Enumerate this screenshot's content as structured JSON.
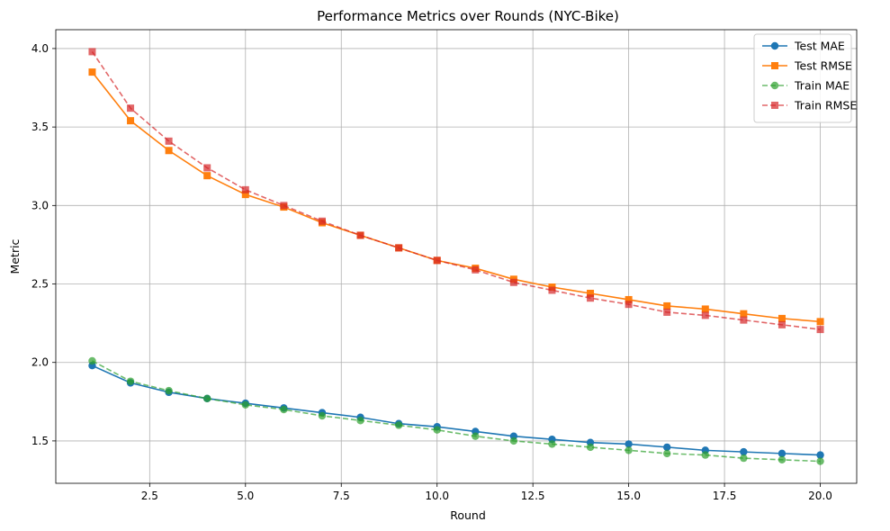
{
  "chart_data": {
    "type": "line",
    "title": "Performance Metrics over Rounds (NYC-Bike)",
    "xlabel": "Round",
    "ylabel": "Metric",
    "xlim": [
      0.05,
      20.95
    ],
    "ylim": [
      1.23,
      4.12
    ],
    "xticks": [
      2.5,
      5.0,
      7.5,
      10.0,
      12.5,
      15.0,
      17.5,
      20.0
    ],
    "xtick_labels": [
      "2.5",
      "5.0",
      "7.5",
      "10.0",
      "12.5",
      "15.0",
      "17.5",
      "20.0"
    ],
    "yticks": [
      1.5,
      2.0,
      2.5,
      3.0,
      3.5,
      4.0
    ],
    "ytick_labels": [
      "1.5",
      "2.0",
      "2.5",
      "3.0",
      "3.5",
      "4.0"
    ],
    "grid": true,
    "legend_position": "top-right",
    "x": [
      1,
      2,
      3,
      4,
      5,
      6,
      7,
      8,
      9,
      10,
      11,
      12,
      13,
      14,
      15,
      16,
      17,
      18,
      19,
      20
    ],
    "series": [
      {
        "name": "Test MAE",
        "color": "#1f77b4",
        "marker": "circle",
        "dashed": false,
        "opacity": 1,
        "values": [
          1.98,
          1.87,
          1.81,
          1.77,
          1.74,
          1.71,
          1.68,
          1.65,
          1.61,
          1.59,
          1.56,
          1.53,
          1.51,
          1.49,
          1.48,
          1.46,
          1.44,
          1.43,
          1.42,
          1.41
        ]
      },
      {
        "name": "Test RMSE",
        "color": "#ff7f0e",
        "marker": "square",
        "dashed": false,
        "opacity": 1,
        "values": [
          3.85,
          3.54,
          3.35,
          3.19,
          3.07,
          2.99,
          2.89,
          2.81,
          2.73,
          2.65,
          2.6,
          2.53,
          2.48,
          2.44,
          2.4,
          2.36,
          2.34,
          2.31,
          2.28,
          2.26
        ]
      },
      {
        "name": "Train MAE",
        "color": "#2ca02c",
        "marker": "circle",
        "dashed": true,
        "opacity": 0.7,
        "values": [
          2.01,
          1.88,
          1.82,
          1.77,
          1.73,
          1.7,
          1.66,
          1.63,
          1.6,
          1.57,
          1.53,
          1.5,
          1.48,
          1.46,
          1.44,
          1.42,
          1.41,
          1.39,
          1.38,
          1.37
        ]
      },
      {
        "name": "Train RMSE",
        "color": "#d62728",
        "marker": "square",
        "dashed": true,
        "opacity": 0.7,
        "values": [
          3.98,
          3.62,
          3.41,
          3.24,
          3.1,
          3.0,
          2.9,
          2.81,
          2.73,
          2.65,
          2.59,
          2.51,
          2.46,
          2.41,
          2.37,
          2.32,
          2.3,
          2.27,
          2.24,
          2.21
        ]
      }
    ]
  }
}
